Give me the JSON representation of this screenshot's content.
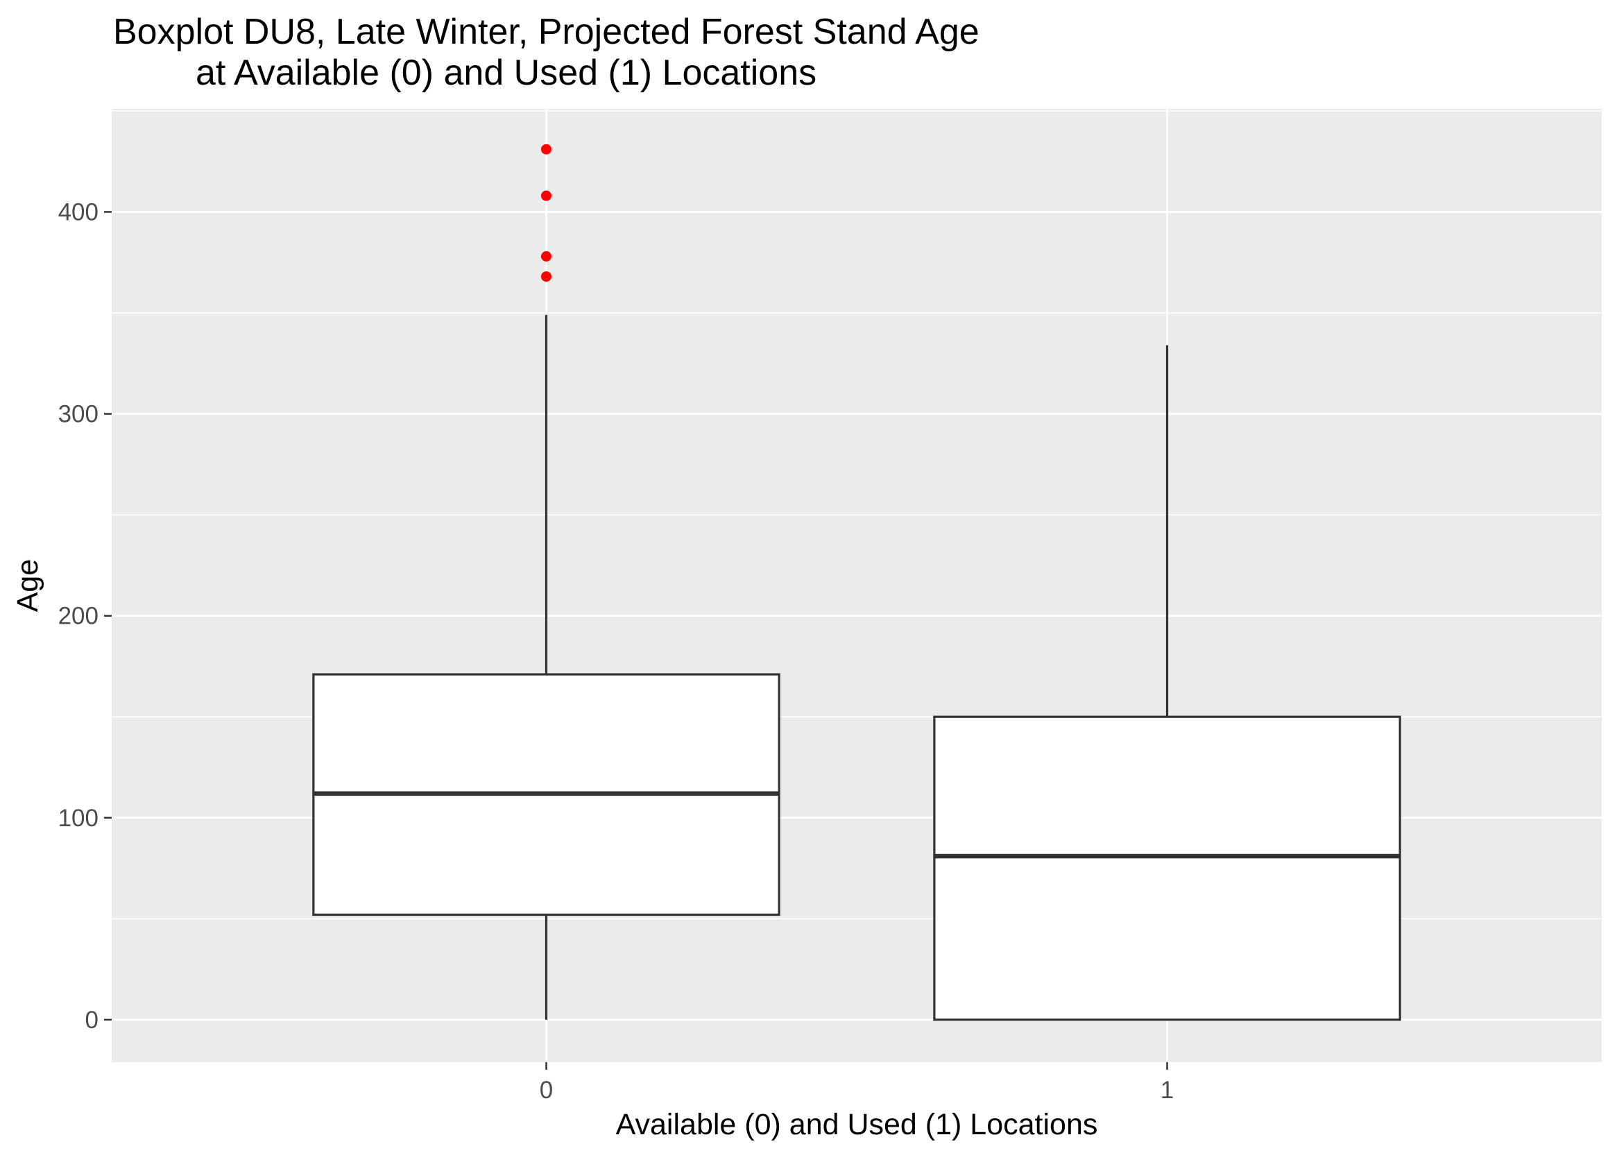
{
  "chart_data": {
    "type": "boxplot",
    "title": [
      "Boxplot DU8, Late Winter, Projected Forest Stand Age",
      "at Available (0) and Used (1) Locations"
    ],
    "xlabel": "Available (0) and Used (1) Locations",
    "ylabel": "Age",
    "categories": [
      "0",
      "1"
    ],
    "y_ticks": [
      0,
      100,
      200,
      300,
      400
    ],
    "ylim": [
      -21,
      451
    ],
    "grid": true,
    "boxes": [
      {
        "category": "0",
        "lower_whisker": 0,
        "q1": 52,
        "median": 112,
        "q3": 171,
        "upper_whisker": 349,
        "outliers": [
          368,
          378,
          408,
          431
        ]
      },
      {
        "category": "1",
        "lower_whisker": 0,
        "q1": 0,
        "median": 81,
        "q3": 150,
        "upper_whisker": 334,
        "outliers": []
      }
    ],
    "colors": {
      "panel_background": "#ebebeb",
      "grid_major": "#ffffff",
      "box_fill": "#ffffff",
      "box_line": "#333333",
      "outlier": "#ff0000",
      "tick_label": "#4d4d4d"
    }
  }
}
